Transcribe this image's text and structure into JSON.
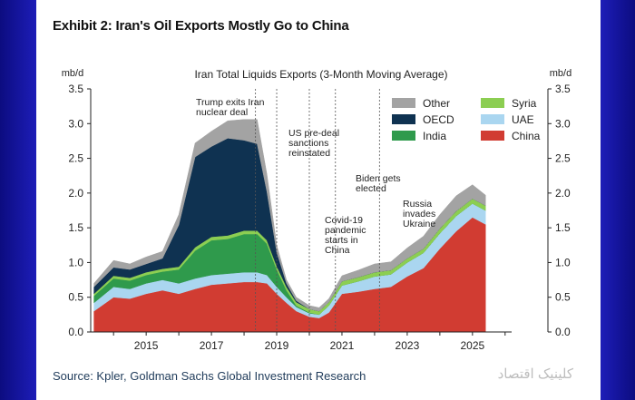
{
  "exhibit_title": "Exhibit 2: Iran's Oil Exports Mostly Go to China",
  "source": "Source: Kpler, Goldman Sachs Global Investment Research",
  "watermark": "کلینیک اقتصاد",
  "chart_data": {
    "type": "area",
    "stacked": true,
    "title": "Iran Total Liquids Exports (3-Month Moving Average)",
    "ylabel_left": "mb/d",
    "ylabel_right": "mb/d",
    "ylim": [
      0,
      3.5
    ],
    "yticks": [
      "0.0",
      "0.5",
      "1.0",
      "1.5",
      "2.0",
      "2.5",
      "3.0",
      "3.5"
    ],
    "xlim": [
      2013.3,
      2026.2
    ],
    "xticks": [
      "2015",
      "2017",
      "2019",
      "2021",
      "2023",
      "2025"
    ],
    "x": [
      2013.4,
      2014.0,
      2014.5,
      2015.0,
      2015.5,
      2016.0,
      2016.5,
      2017.0,
      2017.5,
      2018.0,
      2018.4,
      2018.7,
      2019.0,
      2019.3,
      2019.6,
      2020.0,
      2020.3,
      2020.6,
      2021.0,
      2021.5,
      2022.0,
      2022.5,
      2023.0,
      2023.5,
      2024.0,
      2024.5,
      2025.0,
      2025.4
    ],
    "series": [
      {
        "name": "China",
        "color": "#d13c32",
        "values": [
          0.3,
          0.5,
          0.48,
          0.55,
          0.6,
          0.55,
          0.62,
          0.68,
          0.7,
          0.72,
          0.72,
          0.7,
          0.55,
          0.42,
          0.3,
          0.22,
          0.2,
          0.28,
          0.55,
          0.58,
          0.62,
          0.65,
          0.8,
          0.92,
          1.2,
          1.45,
          1.65,
          1.55
        ]
      },
      {
        "name": "UAE",
        "color": "#aad6f0",
        "values": [
          0.12,
          0.15,
          0.14,
          0.15,
          0.15,
          0.15,
          0.15,
          0.14,
          0.14,
          0.14,
          0.14,
          0.12,
          0.1,
          0.08,
          0.06,
          0.05,
          0.05,
          0.1,
          0.12,
          0.15,
          0.18,
          0.18,
          0.2,
          0.22,
          0.22,
          0.22,
          0.2,
          0.2
        ]
      },
      {
        "name": "India",
        "color": "#2f9a4c",
        "values": [
          0.1,
          0.12,
          0.12,
          0.12,
          0.12,
          0.2,
          0.4,
          0.5,
          0.5,
          0.55,
          0.55,
          0.45,
          0.25,
          0.1,
          0.02,
          0.01,
          0.0,
          0.0,
          0.0,
          0.0,
          0.0,
          0.0,
          0.0,
          0.0,
          0.0,
          0.0,
          0.0,
          0.0
        ]
      },
      {
        "name": "Syria",
        "color": "#8cce52",
        "values": [
          0.03,
          0.04,
          0.04,
          0.04,
          0.04,
          0.04,
          0.05,
          0.05,
          0.05,
          0.05,
          0.05,
          0.05,
          0.05,
          0.05,
          0.05,
          0.05,
          0.05,
          0.05,
          0.06,
          0.06,
          0.06,
          0.06,
          0.06,
          0.06,
          0.07,
          0.07,
          0.07,
          0.07
        ]
      },
      {
        "name": "OECD",
        "color": "#0f3251",
        "values": [
          0.1,
          0.12,
          0.12,
          0.12,
          0.15,
          0.6,
          1.3,
          1.3,
          1.4,
          1.3,
          1.25,
          0.7,
          0.2,
          0.05,
          0.02,
          0.0,
          0.0,
          0.0,
          0.0,
          0.0,
          0.0,
          0.0,
          0.0,
          0.0,
          0.0,
          0.0,
          0.0,
          0.0
        ]
      },
      {
        "name": "Other",
        "color": "#a3a3a3",
        "values": [
          0.05,
          0.1,
          0.08,
          0.1,
          0.1,
          0.15,
          0.2,
          0.22,
          0.25,
          0.3,
          0.35,
          0.25,
          0.1,
          0.05,
          0.05,
          0.05,
          0.05,
          0.05,
          0.08,
          0.1,
          0.12,
          0.12,
          0.15,
          0.18,
          0.2,
          0.22,
          0.2,
          0.15
        ]
      }
    ],
    "legend_order": [
      "Other",
      "Syria",
      "OECD",
      "UAE",
      "India",
      "China"
    ],
    "legend_position": "top-right",
    "annotations": [
      {
        "x": 2018.35,
        "lines": [
          "Trump exits Iran",
          "nuclear deal"
        ]
      },
      {
        "x": 2019.0,
        "lines": [
          "US pre-deal",
          "sanctions",
          "reinstated"
        ]
      },
      {
        "x": 2020.0,
        "lines": [
          "Covid-19",
          "pandemic",
          "starts in",
          "China"
        ]
      },
      {
        "x": 2020.8,
        "lines": [
          "Biden gets",
          "elected"
        ]
      },
      {
        "x": 2022.15,
        "lines": [
          "Russia",
          "invades",
          "Ukraine"
        ]
      }
    ]
  }
}
